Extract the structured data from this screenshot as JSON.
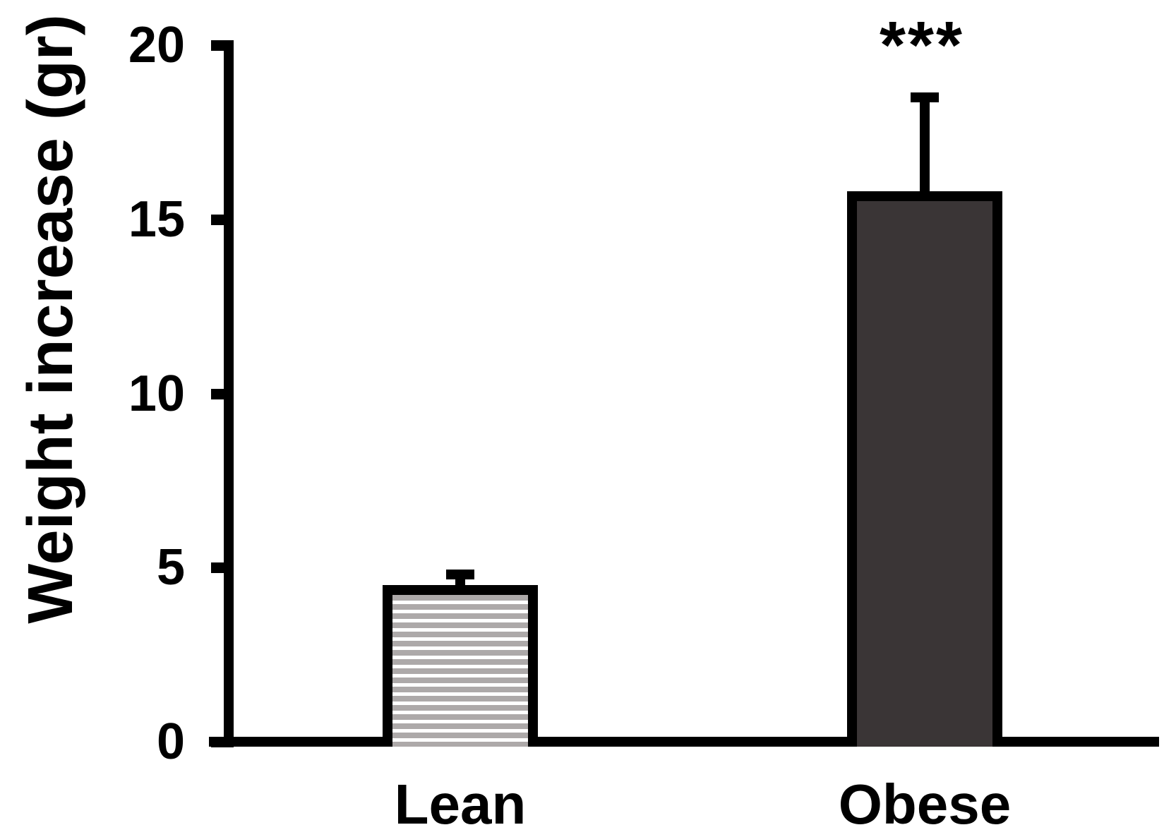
{
  "chart_data": {
    "type": "bar",
    "ylabel": "Weight increase (gr)",
    "categories": [
      "Lean",
      "Obese"
    ],
    "values": [
      4.5,
      15.8
    ],
    "errors": [
      0.3,
      2.7
    ],
    "error_direction": "upper-only",
    "ylim": [
      0,
      20
    ],
    "yticks": [
      20,
      15,
      10,
      5,
      0
    ],
    "ytick_labels": [
      "20",
      "15",
      "10",
      "5",
      "0"
    ],
    "annotations": [
      {
        "text": "***",
        "target": "Obese",
        "meaning": "significance-stars"
      }
    ],
    "grid": false,
    "legend": false,
    "axis_color": "#000000",
    "bar_styles": [
      {
        "category": "Lean",
        "fill": "horizontal-stripes",
        "stripe_color": "#ada9a9",
        "background": "#ffffff",
        "border": "#000000"
      },
      {
        "category": "Obese",
        "fill": "solid",
        "color": "#3a3536",
        "border": "#000000"
      }
    ]
  }
}
